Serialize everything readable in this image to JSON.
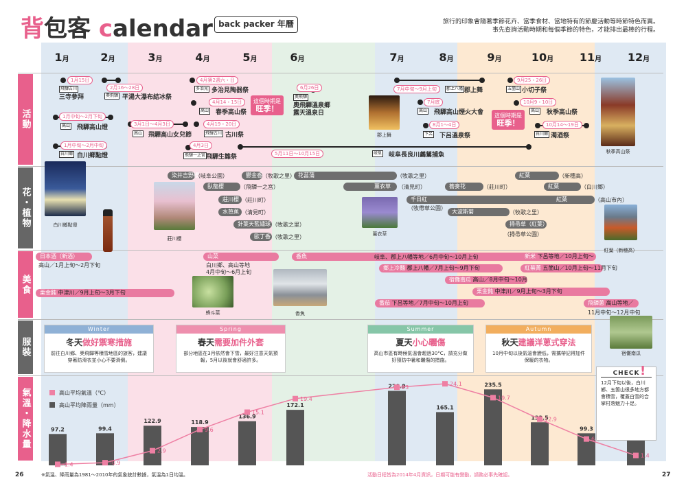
{
  "header": {
    "title_pink": "背",
    "title_rest": "包客 ",
    "title_c": "c",
    "title_tail": "alendar",
    "subtitle": "back packer 年曆",
    "intro_line1": "旅行的印象會隨著季節花卉、當季食材、當地特有的節慶活動等時節特色而異。",
    "intro_line2": "事先查詢活動時期和每個季節的特色，才能排出最棒的行程。"
  },
  "months": [
    "1",
    "2",
    "3",
    "4",
    "5",
    "6",
    "7",
    "8",
    "9",
    "10",
    "11",
    "12"
  ],
  "month_unit": "月",
  "categories": {
    "events": "活動",
    "flowers": "花・植物",
    "food": "美食",
    "clothing": "服裝",
    "climate": "氣溫・降水量"
  },
  "events": {
    "e1_date": "1月15日",
    "e1_tag": "飛驒古川",
    "e1_name": "三寺參拜",
    "e2_date": "2月16～28日",
    "e2_tag": "奧飛驒",
    "e2_name": "平湯大瀑布結冰祭",
    "e3_date": "1月中旬～2月下旬",
    "e3_tag": "高山",
    "e3_name": "飛驒高山燈",
    "e4_date": "1月中旬～2月中旬",
    "e4_tag": "白川鄉",
    "e4_name": "白川鄉點燈",
    "e5_date": "3月1日～4月3日",
    "e5_tag": "高山",
    "e5_name": "飛驒高山女兒節",
    "e6_date": "4月第2週六・日",
    "e6_tag": "多治見",
    "e6_name": "多治見陶器祭",
    "e7_date": "4月14・15日",
    "e7_tag": "高山",
    "e7_name": "春季高山祭",
    "e8_date": "4月19・20日",
    "e8_tag": "飛驒古川",
    "e8_name": "古川祭",
    "e9_date": "4月3日",
    "e9_tag": "飛驒一之宮",
    "e9_name": "飛驒生雛祭",
    "e10_date": "6月26日",
    "e10_tag": "奧飛驒",
    "e10_name1": "奧飛驒溫泉鄉",
    "e10_name2": "露天溫泉日",
    "e11_date": "5月11日～10月15日",
    "e11_tag": "岐阜",
    "e11_name": "岐阜長良川鸕鶿捕魚",
    "e12_date": "7月中旬～9月上旬",
    "e12_tag": "郡上八幡",
    "e12_name": "郡上舞",
    "e13_date": "7月底",
    "e13_tag": "高山",
    "e13_name": "飛驒高山煙火大會",
    "e14_date": "8月1～4日",
    "e14_tag": "下呂",
    "e14_name": "下呂溫泉祭",
    "e15_date": "9月25・26日",
    "e15_tag": "五箇山",
    "e15_name": "小切子祭",
    "e16_date": "10月9・10日",
    "e16_tag": "高山",
    "e16_name": "秋季高山祭",
    "e17_date": "10月14～19日",
    "e17_tag": "白川鄉",
    "e17_name": "濁酒祭",
    "bubble_a1": "這個時期是",
    "bubble_a2": "旺季！",
    "bubble_b1": "這個時期是",
    "bubble_b2": "旺季！",
    "cap_shirakawa": "白川鄉點燈",
    "cap_gujo": "郡上舞",
    "cap_autumn": "秋季高山祭"
  },
  "flowers": {
    "f1": "染井吉野櫻",
    "f1_loc": "（岐阜公園）",
    "f2": "臥龍櫻",
    "f2_loc": "（飛驒一之宮）",
    "f3": "莊川櫻",
    "f3_loc": "（莊川町）",
    "f4": "水芭蕉",
    "f4_loc": "（清見町）",
    "f5": "針葉天藍繡球",
    "f5_loc": "（牧歌之里）",
    "f6": "歐丁香",
    "f6_loc": "（牧歌之里）",
    "f7": "鬱金香",
    "f7_loc": "（牧歌之里）",
    "f8": "花菖蒲",
    "f9_loc": "（牧歌之里）",
    "f10": "薰衣草",
    "f10_loc": "（清見町）",
    "f11": "蕎麥花",
    "f11_loc": "（莊川町）",
    "f12": "千日紅",
    "f12_loc": "（牧帶草公園）",
    "f13": "大波斯菊",
    "f13_loc": "（牧歌之里）",
    "f14": "紅葉",
    "f14_loc": "（新穗高）",
    "f15": "紅葉",
    "f15_loc": "（白川鄉）",
    "f16": "紅葉",
    "f16_loc": "（高山市內）",
    "f17": "掃帚草（紅葉）",
    "f17_loc": "（掃帚草公園）",
    "cap_shokawa": "莊川櫻",
    "cap_lavender": "薰衣草",
    "cap_momiji": "紅葉（新穗高）"
  },
  "food": {
    "sake": "日本酒（新酒）",
    "sake_info": "高山／1月上旬～2月下旬",
    "sansai": "山菜",
    "sansai_info1": "白川鄉、高山等地",
    "sansai_info2": "4月中旬～6月上旬",
    "ayu": "香魚",
    "cap_sansai": "蜂斗菜",
    "cap_ayu": "香魚",
    "kuri": "栗金飩",
    "kuri_info": "中津川／9月上旬～3月下旬",
    "r1": "岐阜、郡上八幡等地／6月中旬～10月上旬",
    "r2": "鄉上冷麵",
    "r2_info": "郡上八幡／7月上旬～9月下旬",
    "r3": "宿儺南瓜",
    "r3_info": "高山／8月中旬～10月",
    "r4": "栗金飩",
    "r4_info": "中津川／9月上旬～3月下旬",
    "r5": "番茄",
    "r5_info": "下呂等地／7月中旬～10月上旬",
    "r6": "新米",
    "r6_info": "下呂等地／10月上旬～",
    "r7": "紅蕪菁",
    "r7_info": "五箇山／10月上旬～11月下旬",
    "r8": "飛驒蔥",
    "r8_info1": "高山等地／",
    "r8_info2": "11月中旬～12月中旬",
    "cap_pumpkin": "宿儺南瓜"
  },
  "clothing": {
    "winter_hd": "Winter",
    "winter_t1": "冬天",
    "winter_t2": "做好禦寒措施",
    "winter_tx": "前往白川鄉、奧飛驒等積雪地區的旅客，建議穿著防滑衣並小心不要滑倒。",
    "spring_hd": "Spring",
    "spring_t1": "春天",
    "spring_t2": "需要加件外套",
    "spring_tx": "部分地區在3月依然會下雪，最好注意天氣預報，5月以後就會舒適許多。",
    "summer_hd": "Summer",
    "summer_t1": "夏天",
    "summer_t2": "小心曬傷",
    "summer_tx": "高山市區有時候氣溫會超過30°C，請充分做好預防中暑和曬傷的措施。",
    "autumn_hd": "Autumn",
    "autumn_t1": "秋天",
    "autumn_t2": "建議洋蔥式穿法",
    "autumn_tx": "10月中旬以後氣溫會變低，需攜帶記得加件保暖的衣物。"
  },
  "climate": {
    "legend_temp": "高山平均氣溫（℃）",
    "legend_rain": "高山平均降雨量（mm）",
    "check_title": "CHECK",
    "check_text": "12月下旬以後，白川鄉、五箇山很多地方都會積雪，覆蓋白雪的合掌村落魅力十足。"
  },
  "chart_data": {
    "type": "bar",
    "categories": [
      "1月",
      "2月",
      "3月",
      "4月",
      "5月",
      "6月",
      "7月",
      "8月",
      "9月",
      "10月",
      "11月",
      "12月"
    ],
    "series": [
      {
        "name": "高山平均降雨量（mm）",
        "values": [
          97.2,
          99.4,
          122.9,
          118.9,
          136.9,
          172.1,
          230.9,
          165.1,
          235.5,
          133.5,
          99.3,
          87.8
        ]
      },
      {
        "name": "高山平均氣溫（℃）",
        "values": [
          -1.4,
          -0.9,
          2.9,
          9.6,
          15.1,
          19.4,
          23.0,
          24.1,
          19.7,
          12.9,
          6.6,
          1.4
        ]
      }
    ]
  },
  "footer": {
    "page_left": "26",
    "page_right": "27",
    "note_left": "※氣溫、降雨量為1981～2010年的氣象統計數據，氣溫為1日均溫。",
    "note_right": "活動日程皆為2014年4月資訊，日期可能有變動，請務必事先確認。"
  }
}
